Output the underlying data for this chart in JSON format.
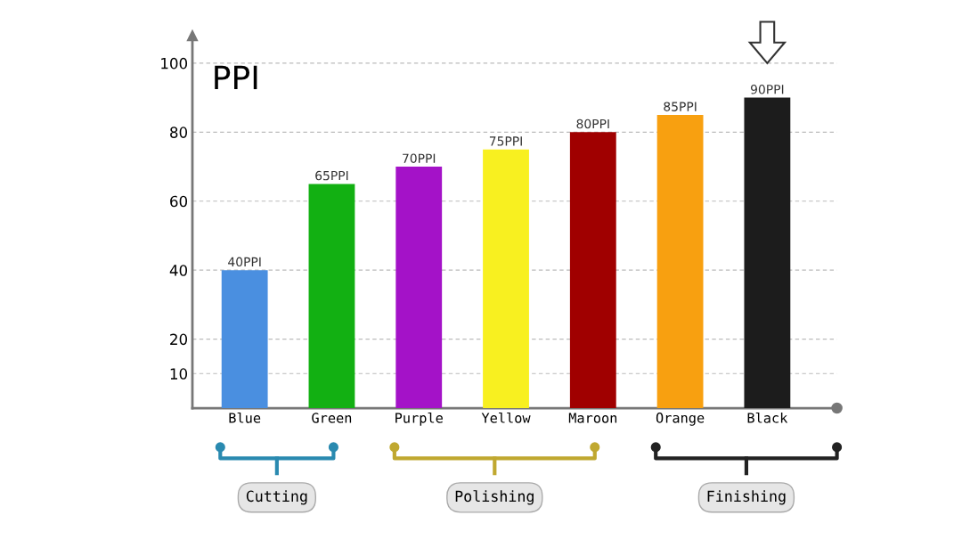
{
  "chart_data": {
    "type": "bar",
    "title": "PPI",
    "categories": [
      "Blue",
      "Green",
      "Purple",
      "Yellow",
      "Maroon",
      "Orange",
      "Black"
    ],
    "values": [
      40,
      65,
      70,
      75,
      80,
      85,
      90
    ],
    "value_labels": [
      "40PPI",
      "65PPI",
      "70PPI",
      "75PPI",
      "80PPI",
      "85PPI",
      "90PPI"
    ],
    "colors": [
      "#4a8fe0",
      "#12b012",
      "#a412c8",
      "#f8f020",
      "#a00000",
      "#f8a010",
      "#1c1c1c"
    ],
    "ylim": [
      0,
      108
    ],
    "yticks": [
      10,
      20,
      40,
      60,
      80,
      100
    ],
    "grid": "y",
    "annotations": [
      "Cutting",
      "Polishing",
      "Finishing"
    ]
  }
}
